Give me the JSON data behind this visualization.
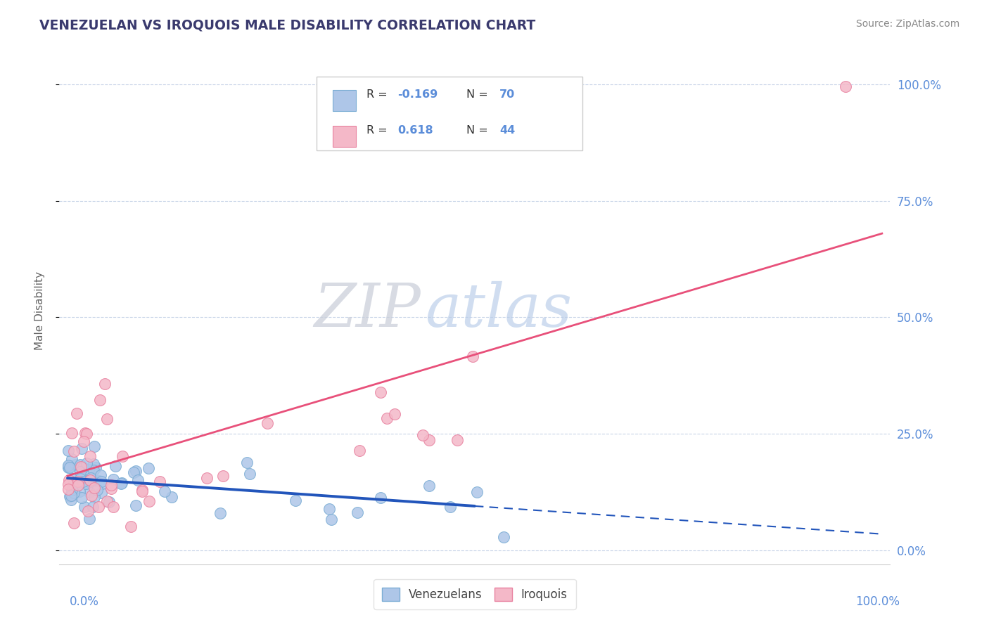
{
  "title": "VENEZUELAN VS IROQUOIS MALE DISABILITY CORRELATION CHART",
  "source": "Source: ZipAtlas.com",
  "ylabel": "Male Disability",
  "watermark_zip": "ZIP",
  "watermark_atlas": "atlas",
  "title_color": "#3a3a6e",
  "source_color": "#888888",
  "axis_label_color": "#5b8dd9",
  "ylabel_color": "#666666",
  "background_color": "#ffffff",
  "plot_background": "#ffffff",
  "grid_color": "#c8d4e8",
  "venezuelan_color": "#aec6e8",
  "iroquois_color": "#f4b8c8",
  "venezuelan_edge": "#7badd4",
  "iroquois_edge": "#e882a0",
  "blue_line_color": "#2255bb",
  "pink_line_color": "#e8507a",
  "ytick_labels": [
    "0.0%",
    "25.0%",
    "50.0%",
    "75.0%",
    "100.0%"
  ],
  "ytick_values": [
    0.0,
    0.25,
    0.5,
    0.75,
    1.0
  ],
  "legend_r1": "R = -0.169   N = 70",
  "legend_r2": "R =  0.618   N = 44",
  "legend_r1_num": "-0.169",
  "legend_r2_num": "0.618",
  "legend_n1": "70",
  "legend_n2": "44"
}
